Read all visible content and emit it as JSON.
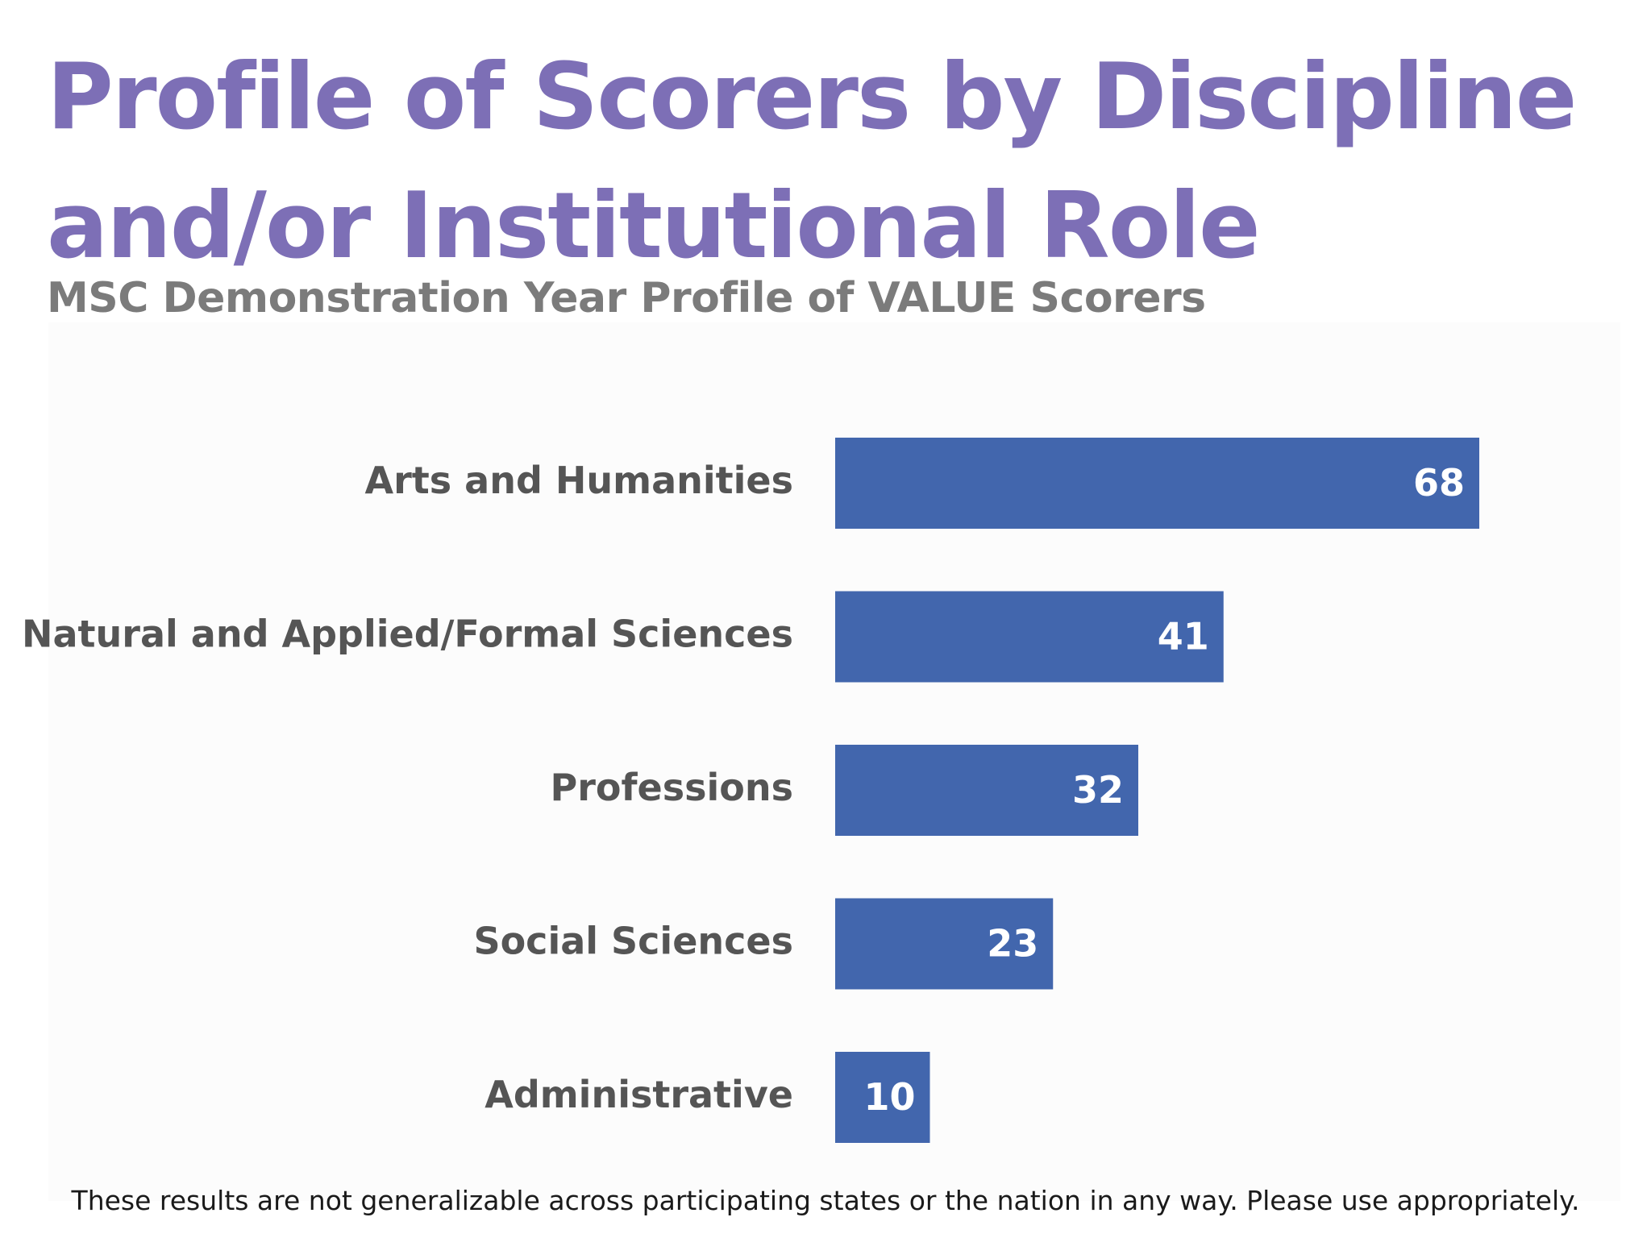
{
  "slide": {
    "title": "Profile of Scorers by Discipline and/or Institutional Role",
    "footnote": "These results are not generalizable across participating states or the nation in any way. Please use appropriately."
  },
  "chart_data": {
    "type": "bar",
    "orientation": "horizontal",
    "title": "MSC Demonstration Year Profile of VALUE Scorers",
    "categories": [
      "Arts and Humanities",
      "Natural and Applied/Formal Sciences",
      "Professions",
      "Social Sciences",
      "Administrative"
    ],
    "values": [
      68,
      41,
      32,
      23,
      10
    ],
    "data_labels": [
      "68",
      "41",
      "32",
      "23",
      "10"
    ],
    "xlim": [
      0,
      75
    ],
    "grid": false,
    "legend": "none",
    "bar_color": "#4266ad",
    "label_color": "#ffffff",
    "category_color": "#555555"
  }
}
